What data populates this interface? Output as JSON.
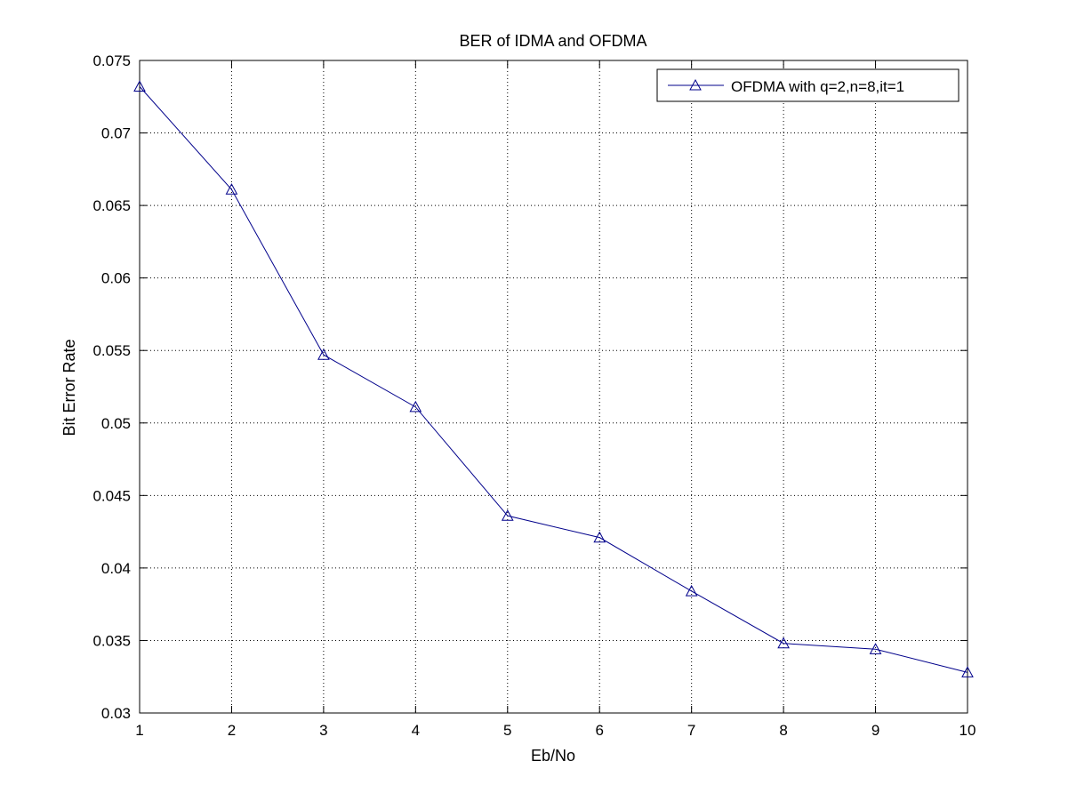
{
  "chart_data": {
    "type": "line",
    "title": "BER of IDMA and OFDMA",
    "xlabel": "Eb/No",
    "ylabel": "Bit Error Rate",
    "xlim": [
      1,
      10
    ],
    "ylim": [
      0.03,
      0.075
    ],
    "xticks": [
      1,
      2,
      3,
      4,
      5,
      6,
      7,
      8,
      9,
      10
    ],
    "xtick_labels": [
      "1",
      "2",
      "3",
      "4",
      "5",
      "6",
      "7",
      "8",
      "9",
      "10"
    ],
    "yticks": [
      0.03,
      0.035,
      0.04,
      0.045,
      0.05,
      0.055,
      0.06,
      0.065,
      0.07,
      0.075
    ],
    "ytick_labels": [
      "0.03",
      "0.035",
      "0.04",
      "0.045",
      "0.05",
      "0.055",
      "0.06",
      "0.065",
      "0.07",
      "0.075"
    ],
    "grid": true,
    "legend_position": "top-right",
    "series": [
      {
        "name": "OFDMA with q=2,n=8,it=1",
        "color": "#00008b",
        "marker": "triangle",
        "x": [
          1,
          2,
          3,
          4,
          5,
          6,
          7,
          8,
          9,
          10
        ],
        "values": [
          0.0732,
          0.0661,
          0.0547,
          0.0511,
          0.0436,
          0.0421,
          0.0384,
          0.0348,
          0.0344,
          0.0328
        ]
      }
    ]
  }
}
